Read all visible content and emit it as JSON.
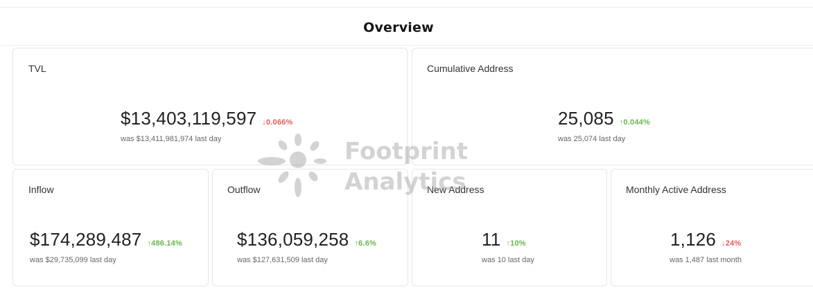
{
  "header": {
    "title": "Overview"
  },
  "cards": {
    "tvl": {
      "label": "TVL",
      "value": "$13,403,119,597",
      "change": "↓0.066%",
      "previous": "was $13,411,981,974 last day"
    },
    "cumulative_address": {
      "label": "Cumulative Address",
      "value": "25,085",
      "change": "↑0.044%",
      "previous": "was 25,074 last day"
    },
    "inflow": {
      "label": "Inflow",
      "value": "$174,289,487",
      "change": "↑486.14%",
      "previous": "was $29,735,099 last day"
    },
    "outflow": {
      "label": "Outflow",
      "value": "$136,059,258",
      "change": "↑6.6%",
      "previous": "was $127,631,509 last day"
    },
    "new_address": {
      "label": "New Address",
      "value": "11",
      "change": "↑10%",
      "previous": "was 10 last day"
    },
    "monthly_active_address": {
      "label": "Monthly Active Address",
      "value": "1,126",
      "change": "↓24%",
      "previous": "was 1,487 last month"
    }
  },
  "watermark": {
    "line1": "Footprint",
    "line2": "Analytics",
    "icon": "footprint-logo-icon"
  },
  "colors": {
    "up": "#69b54a",
    "down": "#e45b5b",
    "border": "#e6e6e6",
    "title": "#161616"
  }
}
